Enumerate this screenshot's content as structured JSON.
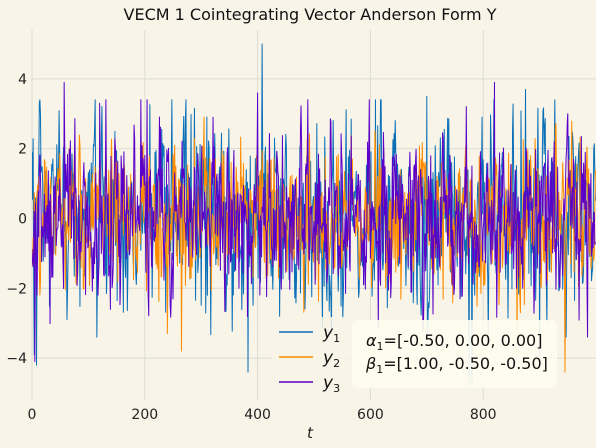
{
  "chart_data": {
    "type": "line",
    "title": "VECM 1 Cointegrating Vector Anderson Form Y",
    "xlabel": "t",
    "ylabel": "",
    "xlim": [
      0,
      1000
    ],
    "ylim": [
      -5.2,
      5.4
    ],
    "xticks": [
      0,
      200,
      400,
      600,
      800
    ],
    "xtick_labels": [
      "0",
      "200",
      "400",
      "600",
      "800"
    ],
    "yticks": [
      -4,
      -2,
      0,
      2,
      4
    ],
    "ytick_labels": [
      "−4",
      "−2",
      "0",
      "2",
      "4"
    ],
    "grid": true,
    "legend_position": "lower-center",
    "n_points": 1000,
    "series": [
      {
        "name": "y1",
        "label_base": "y",
        "label_sub": "1",
        "color": "#0b6fb8",
        "std": 1.35,
        "landmarks": [
          [
            0,
            1.9
          ],
          [
            4,
            -3.9
          ],
          [
            8,
            -4.2
          ],
          [
            408,
            5.0
          ],
          [
            383,
            -4.4
          ],
          [
            780,
            -4.8
          ],
          [
            775,
            -4.7
          ],
          [
            900,
            -4.1
          ],
          [
            875,
            3.7
          ],
          [
            700,
            3.5
          ]
        ]
      },
      {
        "name": "y2",
        "label_base": "y",
        "label_sub": "2",
        "color": "#ff8c00",
        "std": 1.0,
        "landmarks": [
          [
            240,
            -3.3
          ],
          [
            265,
            -3.8
          ],
          [
            945,
            -4.4
          ],
          [
            860,
            -3.9
          ],
          [
            305,
            2.9
          ]
        ]
      },
      {
        "name": "y3",
        "label_base": "y",
        "label_sub": "3",
        "color": "#5a00c8",
        "std": 1.05,
        "landmarks": [
          [
            57,
            3.9
          ],
          [
            5,
            -4.1
          ],
          [
            120,
            3.3
          ],
          [
            400,
            3.6
          ],
          [
            820,
            3.9
          ],
          [
            950,
            3.0
          ]
        ]
      }
    ],
    "annotation": {
      "line1_greek": "α",
      "line1_sub": "1",
      "line1_text": "=[-0.50, 0.00, 0.00]",
      "line2_greek": "β",
      "line2_sub": "1",
      "line2_text": "=[1.00, -0.50, -0.50]"
    }
  }
}
